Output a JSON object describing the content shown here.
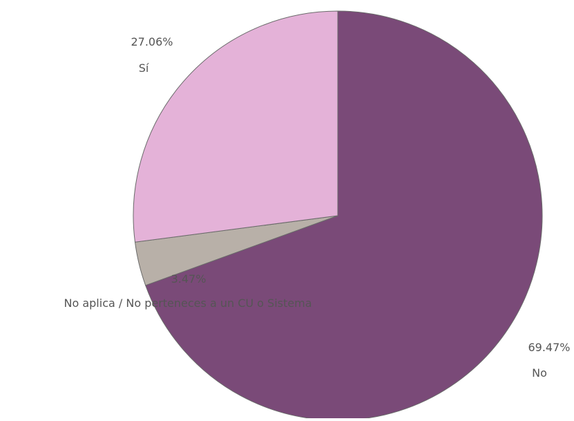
{
  "chart_data": {
    "type": "pie",
    "title": "",
    "start_angle_deg": 0,
    "direction": "clockwise",
    "slices": [
      {
        "label": "No",
        "percent_label": "69.47%",
        "value": 69.47,
        "color": "#7a4a78"
      },
      {
        "label": "No aplica / No perteneces a un CU o Sistema",
        "percent_label": "3.47%",
        "value": 3.47,
        "color": "#b8b0a8"
      },
      {
        "label": "Sí",
        "percent_label": "27.06%",
        "value": 27.06,
        "color": "#e4b2d8"
      }
    ],
    "slice_border_color": "#6a6a6a"
  }
}
